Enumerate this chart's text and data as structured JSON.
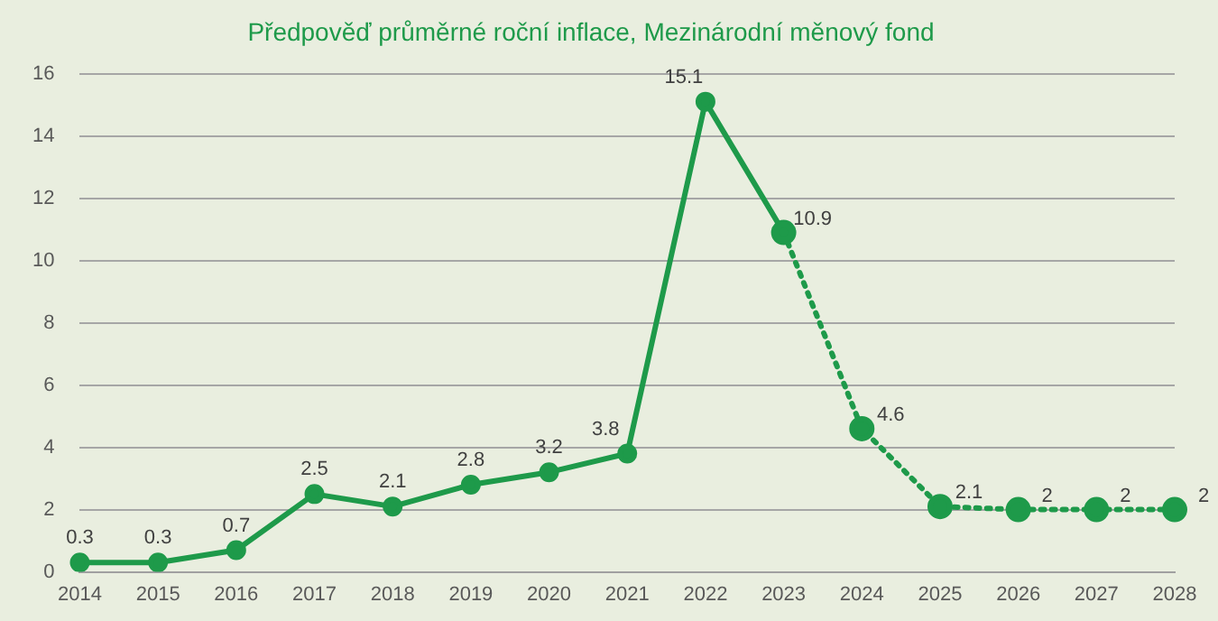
{
  "chart_data": {
    "type": "line",
    "title": "Předpověď průměrné roční inflace, Mezinárodní měnový fond",
    "categories": [
      "2014",
      "2015",
      "2016",
      "2017",
      "2018",
      "2019",
      "2020",
      "2021",
      "2022",
      "2023",
      "2024",
      "2025",
      "2026",
      "2027",
      "2028"
    ],
    "series": [
      {
        "color": "#1e9a4a",
        "line_style": "solid",
        "values": [
          0.3,
          0.3,
          0.7,
          2.5,
          2.1,
          2.8,
          3.2,
          3.8,
          15.1,
          10.9,
          null,
          null,
          null,
          null,
          null
        ],
        "value_labels": [
          "0.3",
          "0.3",
          "0.7",
          "2.5",
          "2.1",
          "2.8",
          "3.2",
          "3.8",
          "15.1",
          "10.9",
          null,
          null,
          null,
          null,
          null
        ]
      },
      {
        "color": "#1e9a4a",
        "line_style": "dotted",
        "values": [
          null,
          null,
          null,
          null,
          null,
          null,
          null,
          null,
          null,
          10.9,
          4.6,
          2.1,
          2,
          2,
          2
        ],
        "value_labels": [
          null,
          null,
          null,
          null,
          null,
          null,
          null,
          null,
          null,
          null,
          "4.6",
          "2.1",
          "2",
          "2",
          "2"
        ]
      }
    ],
    "ylim": [
      0,
      16
    ],
    "yticks": [
      0,
      2,
      4,
      6,
      8,
      10,
      12,
      14,
      16
    ],
    "grid": "y",
    "marker": "circle",
    "legend": false
  }
}
